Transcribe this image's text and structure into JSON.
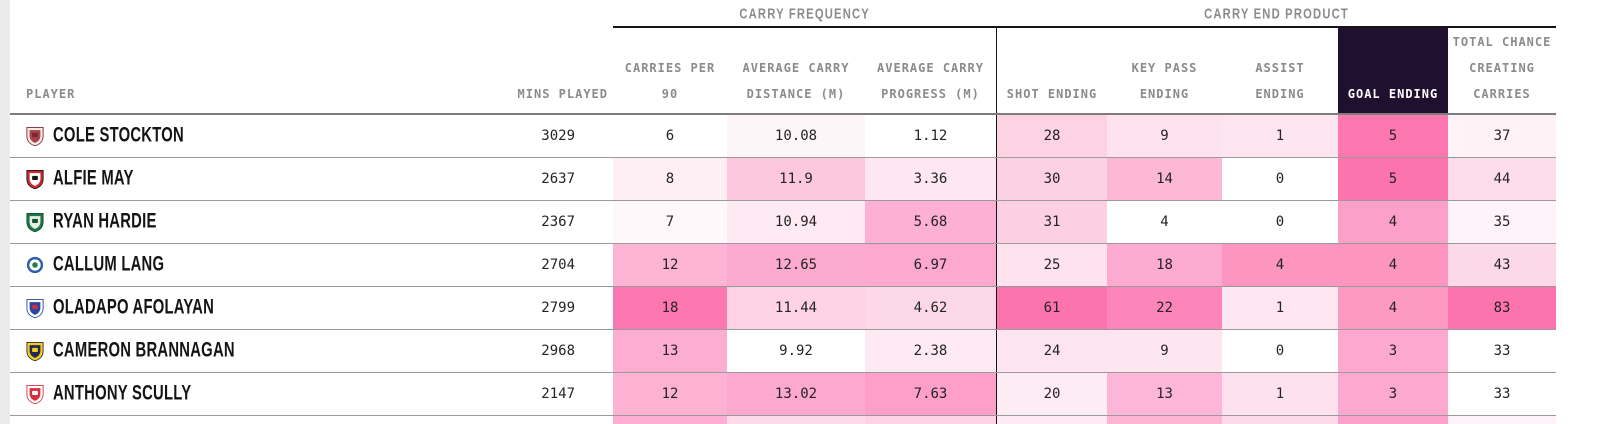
{
  "groups": [
    {
      "label": "CARRY FREQUENCY"
    },
    {
      "label": "CARRY END PRODUCT"
    }
  ],
  "columns": {
    "player": "PLAYER",
    "mins": "MINS PLAYED",
    "stats": [
      {
        "key": "carries-per-90",
        "label": "CARRIES PER\n90"
      },
      {
        "key": "avg-carry-distance",
        "label": "AVERAGE CARRY\nDISTANCE (M)"
      },
      {
        "key": "avg-carry-progress",
        "label": "AVERAGE CARRY\nPROGRESS (M)"
      },
      {
        "key": "shot-ending",
        "label": "SHOT ENDING"
      },
      {
        "key": "key-pass-ending",
        "label": "KEY PASS\nENDING"
      },
      {
        "key": "assist-ending",
        "label": "ASSIST\nENDING"
      },
      {
        "key": "goal-ending",
        "label": "GOAL ENDING",
        "highlight": true
      },
      {
        "key": "total-chance-creating-carries",
        "label": "TOTAL CHANCE\nCREATING\nCARRIES"
      }
    ]
  },
  "colors": {
    "goal_header_bg": "#20102f",
    "goal_header_text": "#ffffff",
    "header_text": "#8b8b8b",
    "value_text": "#242424",
    "divider": "#141414",
    "row_line": "#9a9a9a",
    "left_strip": "#ebebeb",
    "heat_max": "#fc74ad",
    "heat_min": "#ffffff"
  },
  "rows": [
    {
      "player": "COLE STOCKTON",
      "club": "morecambe-badge-icon",
      "badge": {
        "shape": "shield",
        "colors": [
          "#f5ece1",
          "#a8414e",
          "#7e2433"
        ],
        "stroke": "#7e2433"
      },
      "mins": "3029",
      "cells": [
        {
          "v": "6",
          "bg": "#ffffff"
        },
        {
          "v": "10.08",
          "bg": "#fef5f8"
        },
        {
          "v": "1.12",
          "bg": "#ffffff"
        },
        {
          "v": "28",
          "bg": "#fdd3e4"
        },
        {
          "v": "9",
          "bg": "#fee3ef"
        },
        {
          "v": "1",
          "bg": "#fee6f1"
        },
        {
          "v": "5",
          "bg": "#fc77af"
        },
        {
          "v": "37",
          "bg": "#fef2f7"
        }
      ]
    },
    {
      "player": "ALFIE MAY",
      "club": "cheltenham-badge-icon",
      "badge": {
        "shape": "shield",
        "colors": [
          "#d22730",
          "#ffffff",
          "#141414"
        ],
        "stroke": "#141414"
      },
      "mins": "2637",
      "cells": [
        {
          "v": "8",
          "bg": "#feeff5"
        },
        {
          "v": "11.9",
          "bg": "#fdc8de"
        },
        {
          "v": "3.36",
          "bg": "#fee7f1"
        },
        {
          "v": "30",
          "bg": "#fdd1e4"
        },
        {
          "v": "14",
          "bg": "#fdb7d7"
        },
        {
          "v": "0",
          "bg": "#ffffff"
        },
        {
          "v": "5",
          "bg": "#fc74ad"
        },
        {
          "v": "44",
          "bg": "#fdddeb"
        }
      ]
    },
    {
      "player": "RYAN HARDIE",
      "club": "plymouth-badge-icon",
      "badge": {
        "shape": "shield",
        "colors": [
          "#20734a",
          "#e8f0e4",
          "#15502f"
        ],
        "stroke": "#15502f"
      },
      "mins": "2367",
      "cells": [
        {
          "v": "7",
          "bg": "#fef8fa"
        },
        {
          "v": "10.94",
          "bg": "#feeaf2"
        },
        {
          "v": "5.68",
          "bg": "#fdb0d3"
        },
        {
          "v": "31",
          "bg": "#fdcfe2"
        },
        {
          "v": "4",
          "bg": "#ffffff"
        },
        {
          "v": "0",
          "bg": "#ffffff"
        },
        {
          "v": "4",
          "bg": "#fda0c9"
        },
        {
          "v": "35",
          "bg": "#fef3f8"
        }
      ]
    },
    {
      "player": "CALLUM LANG",
      "club": "wigan-badge-icon",
      "badge": {
        "shape": "circle",
        "colors": [
          "#ffffff",
          "#2e7d46",
          "#2b5fad"
        ],
        "stroke": "#2b5fad"
      },
      "mins": "2704",
      "cells": [
        {
          "v": "12",
          "bg": "#fdb4d5"
        },
        {
          "v": "12.65",
          "bg": "#fdaad0"
        },
        {
          "v": "6.97",
          "bg": "#fda9cf"
        },
        {
          "v": "25",
          "bg": "#fee3ef"
        },
        {
          "v": "18",
          "bg": "#fdabd0"
        },
        {
          "v": "4",
          "bg": "#fd95c1"
        },
        {
          "v": "4",
          "bg": "#fd95c1"
        },
        {
          "v": "43",
          "bg": "#fdd9e8"
        }
      ]
    },
    {
      "player": "OLADAPO AFOLAYAN",
      "club": "bolton-badge-icon",
      "badge": {
        "shape": "shield",
        "colors": [
          "#ffffff",
          "#27479c",
          "#cf2e44"
        ],
        "stroke": "#27479c"
      },
      "mins": "2799",
      "cells": [
        {
          "v": "18",
          "bg": "#fc77af"
        },
        {
          "v": "11.44",
          "bg": "#fdd3e5"
        },
        {
          "v": "4.62",
          "bg": "#fdd9e8"
        },
        {
          "v": "61",
          "bg": "#fc74ad"
        },
        {
          "v": "22",
          "bg": "#fc86b9"
        },
        {
          "v": "1",
          "bg": "#fee7f1"
        },
        {
          "v": "4",
          "bg": "#fd9ac4"
        },
        {
          "v": "83",
          "bg": "#fc74ad"
        }
      ]
    },
    {
      "player": "CAMERON BRANNAGAN",
      "club": "oxford-badge-icon",
      "badge": {
        "shape": "shield",
        "colors": [
          "#f5cd1b",
          "#232a56",
          "#f5cd1b"
        ],
        "stroke": "#232a56"
      },
      "mins": "2968",
      "cells": [
        {
          "v": "13",
          "bg": "#fdadd1"
        },
        {
          "v": "9.92",
          "bg": "#ffffff"
        },
        {
          "v": "2.38",
          "bg": "#feeaf3"
        },
        {
          "v": "24",
          "bg": "#fee4f0"
        },
        {
          "v": "9",
          "bg": "#fee6f1"
        },
        {
          "v": "0",
          "bg": "#ffffff"
        },
        {
          "v": "3",
          "bg": "#fda8ce"
        },
        {
          "v": "33",
          "bg": "#ffffff"
        }
      ]
    },
    {
      "player": "ANTHONY SCULLY",
      "club": "lincoln-badge-icon",
      "badge": {
        "shape": "shield",
        "colors": [
          "#ffffff",
          "#d6303c",
          "#ffffff"
        ],
        "stroke": "#d6303c"
      },
      "mins": "2147",
      "cells": [
        {
          "v": "12",
          "bg": "#fdb2d4"
        },
        {
          "v": "13.02",
          "bg": "#fda8ce"
        },
        {
          "v": "7.63",
          "bg": "#fd9fc8"
        },
        {
          "v": "20",
          "bg": "#feecf4"
        },
        {
          "v": "13",
          "bg": "#fdb6d7"
        },
        {
          "v": "1",
          "bg": "#fee1ee"
        },
        {
          "v": "3",
          "bg": "#fda8ce"
        },
        {
          "v": "33",
          "bg": "#ffffff"
        }
      ]
    }
  ],
  "partial_row": {
    "cells": [
      {
        "bg": "#fdaed2"
      },
      {
        "bg": "#fdd9e9"
      },
      {
        "bg": "#fdd2e5"
      },
      {
        "bg": "#feeaf3"
      },
      {
        "bg": "#fdb4d5"
      },
      {
        "bg": "#fdd9e9"
      },
      {
        "bg": "#fda0c9"
      },
      {
        "bg": "#fef3f8"
      }
    ]
  },
  "chart_data": {
    "type": "table",
    "title": "",
    "column_groups": [
      "CARRY FREQUENCY",
      "CARRY END PRODUCT"
    ],
    "columns": [
      "PLAYER",
      "MINS PLAYED",
      "CARRIES PER 90",
      "AVERAGE CARRY DISTANCE (M)",
      "AVERAGE CARRY PROGRESS (M)",
      "SHOT ENDING",
      "KEY PASS ENDING",
      "ASSIST ENDING",
      "GOAL ENDING",
      "TOTAL CHANCE CREATING CARRIES"
    ],
    "rows": [
      [
        "COLE STOCKTON",
        3029,
        6,
        10.08,
        1.12,
        28,
        9,
        1,
        5,
        37
      ],
      [
        "ALFIE MAY",
        2637,
        8,
        11.9,
        3.36,
        30,
        14,
        0,
        5,
        44
      ],
      [
        "RYAN HARDIE",
        2367,
        7,
        10.94,
        5.68,
        31,
        4,
        0,
        4,
        35
      ],
      [
        "CALLUM LANG",
        2704,
        12,
        12.65,
        6.97,
        25,
        18,
        4,
        4,
        43
      ],
      [
        "OLADAPO AFOLAYAN",
        2799,
        18,
        11.44,
        4.62,
        61,
        22,
        1,
        4,
        83
      ],
      [
        "CAMERON BRANNAGAN",
        2968,
        13,
        9.92,
        2.38,
        24,
        9,
        0,
        3,
        33
      ],
      [
        "ANTHONY SCULLY",
        2147,
        12,
        13.02,
        7.63,
        20,
        13,
        1,
        3,
        33
      ]
    ],
    "heatmap": "per-column, white (low) to pink #fc74ad (high)",
    "highlighted_column": "GOAL ENDING"
  }
}
